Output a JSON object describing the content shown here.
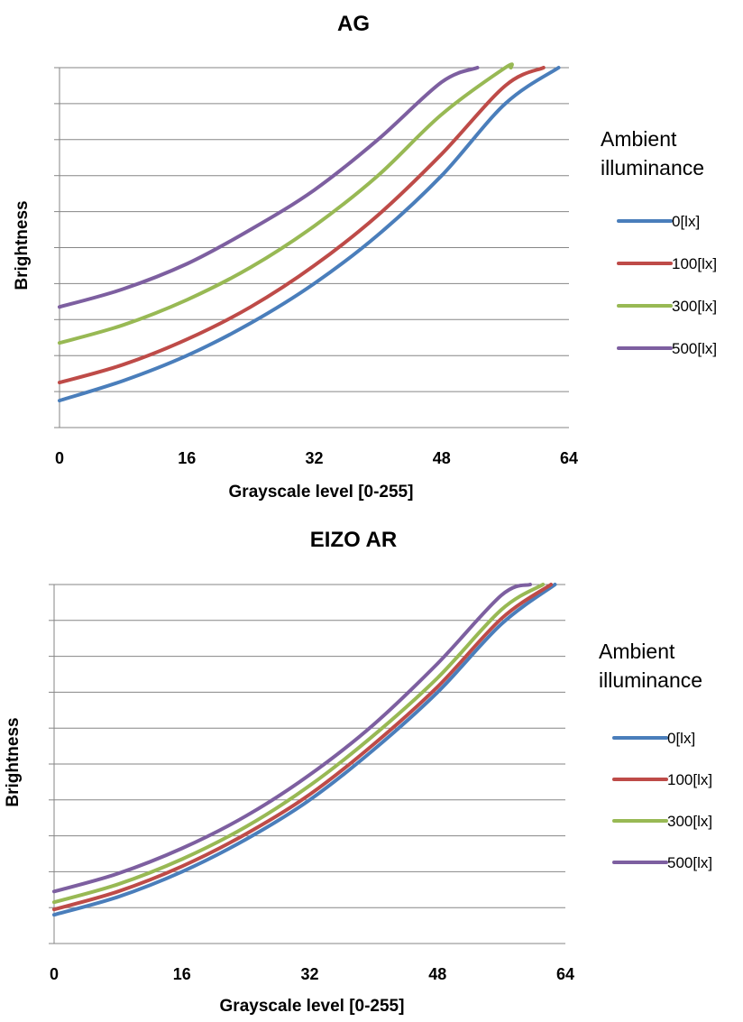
{
  "chart_data": [
    {
      "type": "line",
      "title": "AG",
      "xlabel": "Grayscale level [0-255]",
      "ylabel": "Brightness",
      "xlim": [
        0,
        64
      ],
      "xticks": [
        "0",
        "16",
        "32",
        "48",
        "64"
      ],
      "ylim": [
        0,
        10
      ],
      "grid": true,
      "legend_title": "Ambient illuminance",
      "legend_position": "right",
      "series": [
        {
          "name": "0[lx]",
          "color": "#4a7ebb",
          "x": [
            0,
            8,
            16,
            24,
            32,
            40,
            48,
            56,
            62.7
          ],
          "y": [
            0.75,
            1.3,
            2.0,
            2.9,
            4.0,
            5.35,
            7.0,
            9.0,
            10.0
          ]
        },
        {
          "name": "100[lx]",
          "color": "#be4b48",
          "x": [
            0,
            8,
            16,
            24,
            32,
            40,
            48,
            56,
            60.8
          ],
          "y": [
            1.25,
            1.75,
            2.45,
            3.35,
            4.5,
            5.9,
            7.6,
            9.5,
            10.0
          ]
        },
        {
          "name": "300[lx]",
          "color": "#98b954",
          "x": [
            0,
            8,
            16,
            24,
            32,
            40,
            48,
            56,
            56.7
          ],
          "y": [
            2.35,
            2.85,
            3.55,
            4.45,
            5.6,
            7.0,
            8.7,
            10.0,
            10.0
          ]
        },
        {
          "name": "500[lx]",
          "color": "#7d5fa0",
          "x": [
            0,
            8,
            16,
            24,
            32,
            40,
            48,
            52.5
          ],
          "y": [
            3.35,
            3.85,
            4.55,
            5.5,
            6.6,
            8.0,
            9.6,
            10.0
          ]
        }
      ]
    },
    {
      "type": "line",
      "title": "EIZO AR",
      "xlabel": "Grayscale level [0-255]",
      "ylabel": "Brightness",
      "xlim": [
        0,
        64
      ],
      "xticks": [
        "0",
        "16",
        "32",
        "48",
        "64"
      ],
      "ylim": [
        0,
        10
      ],
      "grid": true,
      "legend_title": "Ambient illuminance",
      "legend_position": "right",
      "series": [
        {
          "name": "0[lx]",
          "color": "#4a7ebb",
          "x": [
            0,
            8,
            16,
            24,
            32,
            40,
            48,
            56,
            62.7
          ],
          "y": [
            0.8,
            1.3,
            2.0,
            2.9,
            4.0,
            5.4,
            7.0,
            8.9,
            10.0
          ]
        },
        {
          "name": "100[lx]",
          "color": "#be4b48",
          "x": [
            0,
            8,
            16,
            24,
            32,
            40,
            48,
            56,
            62.2
          ],
          "y": [
            0.95,
            1.45,
            2.15,
            3.05,
            4.15,
            5.55,
            7.15,
            9.05,
            10.0
          ]
        },
        {
          "name": "300[lx]",
          "color": "#98b954",
          "x": [
            0,
            8,
            16,
            24,
            32,
            40,
            48,
            56,
            61.2
          ],
          "y": [
            1.15,
            1.65,
            2.35,
            3.25,
            4.4,
            5.8,
            7.4,
            9.3,
            10.0
          ]
        },
        {
          "name": "500[lx]",
          "color": "#7d5fa0",
          "x": [
            0,
            8,
            16,
            24,
            32,
            40,
            48,
            56,
            59.6
          ],
          "y": [
            1.45,
            1.95,
            2.65,
            3.55,
            4.7,
            6.1,
            7.8,
            9.7,
            10.0
          ]
        }
      ]
    }
  ]
}
